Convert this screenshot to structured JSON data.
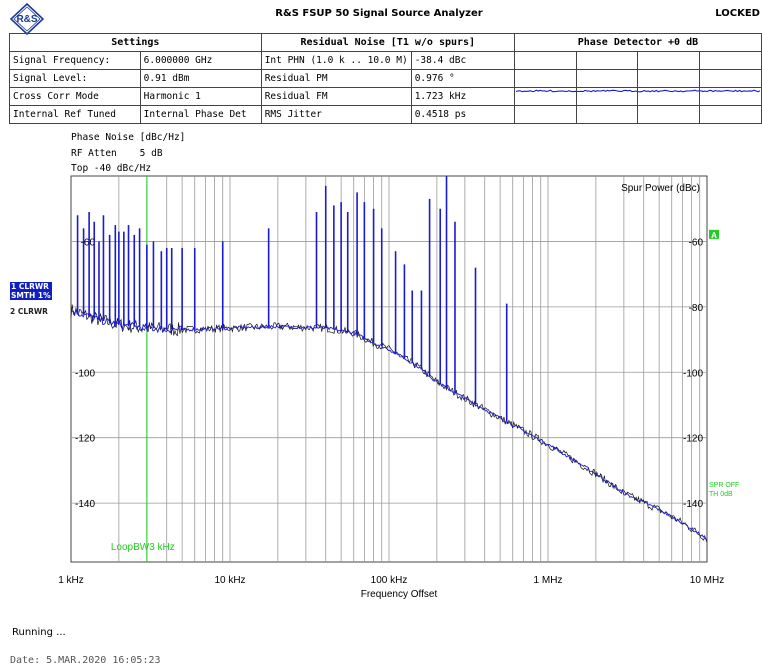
{
  "app": {
    "logo_text": "R&S",
    "title": "R&S FSUP 50 Signal Source Analyzer",
    "status": "LOCKED"
  },
  "settings": {
    "header": "Settings",
    "rows": [
      {
        "label": "Signal Frequency:",
        "value": "6.000000 GHz"
      },
      {
        "label": "Signal Level:",
        "value": "0.91 dBm"
      },
      {
        "label": "Cross Corr Mode",
        "value": "Harmonic 1"
      },
      {
        "label": "Internal Ref Tuned",
        "value": "Internal Phase Det"
      }
    ]
  },
  "residual_noise": {
    "header": "Residual Noise [T1 w/o spurs]",
    "rows": [
      {
        "label": "Int PHN (1.0 k .. 10.0 M)",
        "value": "-38.4 dBc"
      },
      {
        "label": "Residual PM",
        "value": "0.976 °"
      },
      {
        "label": "Residual FM",
        "value": "1.723 kHz"
      },
      {
        "label": "RMS Jitter",
        "value": "0.4518 ps"
      }
    ]
  },
  "phase_detector": {
    "header": "Phase Detector +0 dB"
  },
  "measurement": {
    "line1": "Phase Noise [dBc/Hz]",
    "line2_label": "RF Atten",
    "line2_value": "5 dB",
    "line3": "Top -40 dBc/Hz"
  },
  "traces": {
    "trace1": [
      "1 CLRWR",
      "SMTH 1%"
    ],
    "trace2": "2 CLRWR"
  },
  "colors": {
    "trace1": "#1a1ad0",
    "trace2": "#111111",
    "marker": "#22cc22",
    "grid": "#9a9a9a"
  },
  "chart_data": {
    "type": "line",
    "xlabel": "Frequency Offset",
    "x_scale": "log",
    "xlim": [
      1000,
      10000000
    ],
    "ylim": [
      -158,
      -40
    ],
    "x_ticks": [
      {
        "value": 1000,
        "label": "1 kHz"
      },
      {
        "value": 10000,
        "label": "10 kHz"
      },
      {
        "value": 100000,
        "label": "100 kHz"
      },
      {
        "value": 1000000,
        "label": "1 MHz"
      },
      {
        "value": 10000000,
        "label": "10 MHz"
      }
    ],
    "y_ticks_left": [
      {
        "value": -60,
        "label": "-60"
      },
      {
        "value": -100,
        "label": "-100"
      },
      {
        "value": -120,
        "label": "-120"
      },
      {
        "value": -140,
        "label": "-140"
      }
    ],
    "y_ticks_right": [
      {
        "value": -60,
        "label": "-60"
      },
      {
        "value": -80,
        "label": "-80"
      },
      {
        "value": -100,
        "label": "-100"
      },
      {
        "value": -120,
        "label": "-120"
      },
      {
        "value": -140,
        "label": "-140"
      }
    ],
    "right_axis_title": "Spur Power (dBc)",
    "right_marker_label": "A",
    "spr_label_1": "SPR OFF",
    "spr_label_2": "TH 0dB",
    "loop_bw": {
      "x": 3000,
      "label": "LoopBW3 kHz"
    },
    "noise_curve": [
      [
        1000,
        -81
      ],
      [
        1500,
        -84
      ],
      [
        2000,
        -85.5
      ],
      [
        3000,
        -86.5
      ],
      [
        5000,
        -87
      ],
      [
        10000,
        -86.5
      ],
      [
        20000,
        -86
      ],
      [
        40000,
        -86.5
      ],
      [
        60000,
        -88
      ],
      [
        80000,
        -91
      ],
      [
        100000,
        -93
      ],
      [
        150000,
        -98
      ],
      [
        200000,
        -103
      ],
      [
        300000,
        -108
      ],
      [
        500000,
        -114
      ],
      [
        1000000,
        -122
      ],
      [
        2000000,
        -131
      ],
      [
        3000000,
        -137
      ],
      [
        5000000,
        -142
      ],
      [
        7000000,
        -146
      ],
      [
        10000000,
        -151
      ]
    ],
    "spurs": [
      [
        1100,
        -52
      ],
      [
        1200,
        -56
      ],
      [
        1300,
        -51
      ],
      [
        1400,
        -54
      ],
      [
        1500,
        -60
      ],
      [
        1600,
        -52
      ],
      [
        1750,
        -58
      ],
      [
        1900,
        -55
      ],
      [
        2000,
        -57
      ],
      [
        2150,
        -57
      ],
      [
        2300,
        -55
      ],
      [
        2500,
        -58
      ],
      [
        2700,
        -56
      ],
      [
        3000,
        -61
      ],
      [
        3300,
        -60
      ],
      [
        3700,
        -63
      ],
      [
        4000,
        -62
      ],
      [
        4300,
        -62
      ],
      [
        5000,
        -62
      ],
      [
        6000,
        -62
      ],
      [
        9000,
        -60
      ],
      [
        17500,
        -56
      ],
      [
        35000,
        -51
      ],
      [
        40000,
        -43
      ],
      [
        45000,
        -49
      ],
      [
        50000,
        -48
      ],
      [
        55000,
        -51
      ],
      [
        63000,
        -45
      ],
      [
        70000,
        -48
      ],
      [
        80000,
        -50
      ],
      [
        90000,
        -56
      ],
      [
        110000,
        -63
      ],
      [
        125000,
        -67
      ],
      [
        140000,
        -75
      ],
      [
        160000,
        -75
      ],
      [
        180000,
        -47
      ],
      [
        210000,
        -50
      ],
      [
        230000,
        -40
      ],
      [
        260000,
        -54
      ],
      [
        350000,
        -68
      ],
      [
        550000,
        -79
      ]
    ]
  }
}
